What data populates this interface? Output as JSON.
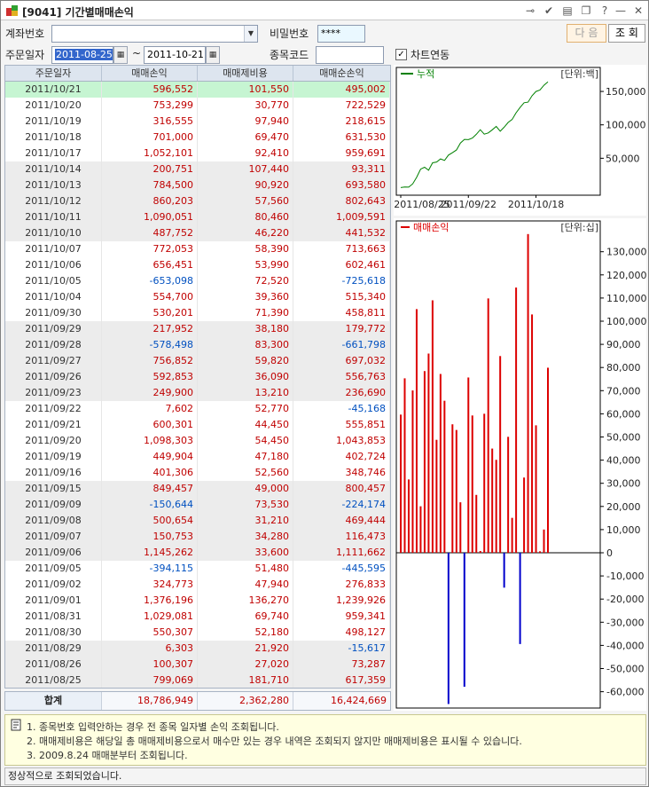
{
  "window": {
    "title": "[9041] 기간별매매손익"
  },
  "form": {
    "account_label": "계좌번호",
    "account_value": "",
    "password_label": "비밀번호",
    "password_value": "****",
    "order_date_label": "주문일자",
    "date_from": "2011-08-25",
    "date_sep": "~",
    "date_to": "2011-10-21",
    "stock_code_label": "종목코드",
    "stock_code_value": "",
    "chart_link_label": "차트연동",
    "chart_link_checked": true,
    "next_button": "다 음",
    "query_button": "조 회"
  },
  "table": {
    "headers": [
      "주문일자",
      "매매손익",
      "매매제비용",
      "매매순손익"
    ],
    "rows": [
      {
        "date": "2011/10/21",
        "pnl": "596,552",
        "cost": "101,550",
        "net": "495,002",
        "selected": true
      },
      {
        "date": "2011/10/20",
        "pnl": "753,299",
        "cost": "30,770",
        "net": "722,529"
      },
      {
        "date": "2011/10/19",
        "pnl": "316,555",
        "cost": "97,940",
        "net": "218,615"
      },
      {
        "date": "2011/10/18",
        "pnl": "701,000",
        "cost": "69,470",
        "net": "631,530"
      },
      {
        "date": "2011/10/17",
        "pnl": "1,052,101",
        "cost": "92,410",
        "net": "959,691"
      },
      {
        "date": "2011/10/14",
        "pnl": "200,751",
        "cost": "107,440",
        "net": "93,311"
      },
      {
        "date": "2011/10/13",
        "pnl": "784,500",
        "cost": "90,920",
        "net": "693,580"
      },
      {
        "date": "2011/10/12",
        "pnl": "860,203",
        "cost": "57,560",
        "net": "802,643"
      },
      {
        "date": "2011/10/11",
        "pnl": "1,090,051",
        "cost": "80,460",
        "net": "1,009,591"
      },
      {
        "date": "2011/10/10",
        "pnl": "487,752",
        "cost": "46,220",
        "net": "441,532"
      },
      {
        "date": "2011/10/07",
        "pnl": "772,053",
        "cost": "58,390",
        "net": "713,663"
      },
      {
        "date": "2011/10/06",
        "pnl": "656,451",
        "cost": "53,990",
        "net": "602,461"
      },
      {
        "date": "2011/10/05",
        "pnl": "-653,098",
        "cost": "72,520",
        "net": "-725,618"
      },
      {
        "date": "2011/10/04",
        "pnl": "554,700",
        "cost": "39,360",
        "net": "515,340"
      },
      {
        "date": "2011/09/30",
        "pnl": "530,201",
        "cost": "71,390",
        "net": "458,811"
      },
      {
        "date": "2011/09/29",
        "pnl": "217,952",
        "cost": "38,180",
        "net": "179,772"
      },
      {
        "date": "2011/09/28",
        "pnl": "-578,498",
        "cost": "83,300",
        "net": "-661,798"
      },
      {
        "date": "2011/09/27",
        "pnl": "756,852",
        "cost": "59,820",
        "net": "697,032"
      },
      {
        "date": "2011/09/26",
        "pnl": "592,853",
        "cost": "36,090",
        "net": "556,763"
      },
      {
        "date": "2011/09/23",
        "pnl": "249,900",
        "cost": "13,210",
        "net": "236,690"
      },
      {
        "date": "2011/09/22",
        "pnl": "7,602",
        "cost": "52,770",
        "net": "-45,168"
      },
      {
        "date": "2011/09/21",
        "pnl": "600,301",
        "cost": "44,450",
        "net": "555,851"
      },
      {
        "date": "2011/09/20",
        "pnl": "1,098,303",
        "cost": "54,450",
        "net": "1,043,853"
      },
      {
        "date": "2011/09/19",
        "pnl": "449,904",
        "cost": "47,180",
        "net": "402,724"
      },
      {
        "date": "2011/09/16",
        "pnl": "401,306",
        "cost": "52,560",
        "net": "348,746"
      },
      {
        "date": "2011/09/15",
        "pnl": "849,457",
        "cost": "49,000",
        "net": "800,457"
      },
      {
        "date": "2011/09/09",
        "pnl": "-150,644",
        "cost": "73,530",
        "net": "-224,174"
      },
      {
        "date": "2011/09/08",
        "pnl": "500,654",
        "cost": "31,210",
        "net": "469,444"
      },
      {
        "date": "2011/09/07",
        "pnl": "150,753",
        "cost": "34,280",
        "net": "116,473"
      },
      {
        "date": "2011/09/06",
        "pnl": "1,145,262",
        "cost": "33,600",
        "net": "1,111,662"
      },
      {
        "date": "2011/09/05",
        "pnl": "-394,115",
        "cost": "51,480",
        "net": "-445,595"
      },
      {
        "date": "2011/09/02",
        "pnl": "324,773",
        "cost": "47,940",
        "net": "276,833"
      },
      {
        "date": "2011/09/01",
        "pnl": "1,376,196",
        "cost": "136,270",
        "net": "1,239,926"
      },
      {
        "date": "2011/08/31",
        "pnl": "1,029,081",
        "cost": "69,740",
        "net": "959,341"
      },
      {
        "date": "2011/08/30",
        "pnl": "550,307",
        "cost": "52,180",
        "net": "498,127"
      },
      {
        "date": "2011/08/29",
        "pnl": "6,303",
        "cost": "21,920",
        "net": "-15,617"
      },
      {
        "date": "2011/08/26",
        "pnl": "100,307",
        "cost": "27,020",
        "net": "73,287"
      },
      {
        "date": "2011/08/25",
        "pnl": "799,069",
        "cost": "181,710",
        "net": "617,359"
      }
    ],
    "total": {
      "label": "합계",
      "pnl": "18,786,949",
      "cost": "2,362,280",
      "net": "16,424,669"
    }
  },
  "notes": [
    "1. 종목번호 입력안하는 경우 전 종목 일자별 손익 조회됩니다.",
    "2. 매매제비용은 해당일 총 매매제비용으로서 매수만 있는 경우 내역은 조회되지 않지만 매매제비용은 표시될 수 있습니다.",
    "3. 2009.8.24 매매분부터 조회됩니다."
  ],
  "status_text": "정상적으로 조회되었습니다.",
  "colors": {
    "positive": "#c00000",
    "negative": "#0050c0",
    "selected_row": "#c6f5d2",
    "line": "#008000",
    "bar_pos": "#dd0000",
    "bar_neg": "#0000cc"
  },
  "chart_data": [
    {
      "type": "line",
      "legend": "누적",
      "unit_label": "[단위:백]",
      "x_ticks": [
        "2011/08/25",
        "2011/09/22",
        "2011/10/18"
      ],
      "y_ticks": [
        "50,000",
        "100,000",
        "150,000"
      ],
      "ylim": [
        0,
        170000
      ],
      "x": [
        "2011/08/25",
        "2011/08/26",
        "2011/08/29",
        "2011/08/30",
        "2011/08/31",
        "2011/09/01",
        "2011/09/02",
        "2011/09/05",
        "2011/09/06",
        "2011/09/07",
        "2011/09/08",
        "2011/09/09",
        "2011/09/15",
        "2011/09/16",
        "2011/09/19",
        "2011/09/20",
        "2011/09/21",
        "2011/09/22",
        "2011/09/23",
        "2011/09/26",
        "2011/09/27",
        "2011/09/28",
        "2011/09/29",
        "2011/09/30",
        "2011/10/04",
        "2011/10/05",
        "2011/10/06",
        "2011/10/07",
        "2011/10/10",
        "2011/10/11",
        "2011/10/12",
        "2011/10/13",
        "2011/10/14",
        "2011/10/17",
        "2011/10/18",
        "2011/10/19",
        "2011/10/20",
        "2011/10/21"
      ],
      "values": [
        6174,
        6907,
        6751,
        11732,
        21325,
        33725,
        36493,
        32037,
        43154,
        44318,
        49013,
        46771,
        54776,
        58263,
        62290,
        72729,
        78287,
        77836,
        80203,
        85770,
        92740,
        86122,
        87920,
        92508,
        97661,
        90405,
        96430,
        103566,
        107981,
        118077,
        126104,
        133040,
        133973,
        143570,
        149885,
        152071,
        159297,
        164247
      ]
    },
    {
      "type": "bar",
      "legend": "매매손익",
      "unit_label": "[단위:십]",
      "y_ticks": [
        "130,000",
        "120,000",
        "110,000",
        "100,000",
        "90,000",
        "80,000",
        "70,000",
        "60,000",
        "50,000",
        "40,000",
        "30,000",
        "20,000",
        "10,000",
        "0",
        "-10,000",
        "-20,000",
        "-30,000",
        "-40,000",
        "-50,000",
        "-60,000"
      ],
      "ylim": [
        -66000,
        138000
      ],
      "categories": [
        "2011/08/25",
        "2011/08/26",
        "2011/08/29",
        "2011/08/30",
        "2011/08/31",
        "2011/09/01",
        "2011/09/02",
        "2011/09/05",
        "2011/09/06",
        "2011/09/07",
        "2011/09/08",
        "2011/09/09",
        "2011/09/15",
        "2011/09/16",
        "2011/09/19",
        "2011/09/20",
        "2011/09/21",
        "2011/09/22",
        "2011/09/23",
        "2011/09/26",
        "2011/09/27",
        "2011/09/28",
        "2011/09/29",
        "2011/09/30",
        "2011/10/04",
        "2011/10/05",
        "2011/10/06",
        "2011/10/07",
        "2011/10/10",
        "2011/10/11",
        "2011/10/12",
        "2011/10/13",
        "2011/10/14",
        "2011/10/17",
        "2011/10/18",
        "2011/10/19",
        "2011/10/20",
        "2011/10/21"
      ],
      "values": [
        79907,
        10031,
        630,
        55031,
        102908,
        137620,
        32477,
        -39412,
        114526,
        15075,
        50065,
        -15064,
        84946,
        40131,
        44990,
        109830,
        60030,
        760,
        24990,
        59285,
        75685,
        -57850,
        21795,
        53020,
        55470,
        -65310,
        65645,
        77205,
        48775,
        109005,
        86020,
        78450,
        20075,
        105210,
        70100,
        31656,
        75330,
        59655
      ]
    }
  ]
}
